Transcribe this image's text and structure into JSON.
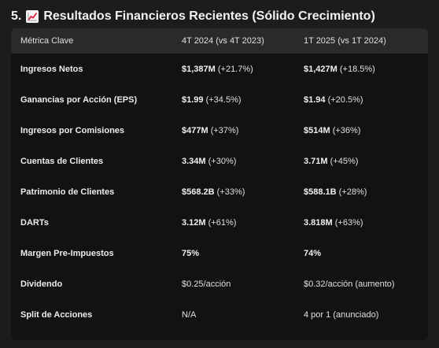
{
  "heading": {
    "number": "5.",
    "icon": "chart-increasing-icon",
    "title": "Resultados Financieros Recientes (Sólido Crecimiento)"
  },
  "table": {
    "headers": [
      "Métrica Clave",
      "4T 2024 (vs 4T 2023)",
      "1T 2025 (vs 1T 2024)"
    ],
    "rows": [
      {
        "metric": "Ingresos Netos",
        "q4_value": "$1,387M",
        "q4_change": "(+21.7%)",
        "q1_value": "$1,427M",
        "q1_change": "(+18.5%)"
      },
      {
        "metric": "Ganancias por Acción (EPS)",
        "q4_value": "$1.99",
        "q4_change": "(+34.5%)",
        "q1_value": "$1.94",
        "q1_change": "(+20.5%)"
      },
      {
        "metric": "Ingresos por Comisiones",
        "q4_value": "$477M",
        "q4_change": "(+37%)",
        "q1_value": "$514M",
        "q1_change": "(+36%)"
      },
      {
        "metric": "Cuentas de Clientes",
        "q4_value": "3.34M",
        "q4_change": "(+30%)",
        "q1_value": "3.71M",
        "q1_change": "(+45%)"
      },
      {
        "metric": "Patrimonio de Clientes",
        "q4_value": "$568.2B",
        "q4_change": "(+33%)",
        "q1_value": "$588.1B",
        "q1_change": "(+28%)"
      },
      {
        "metric": "DARTs",
        "q4_value": "3.12M",
        "q4_change": "(+61%)",
        "q1_value": "3.818M",
        "q1_change": "(+63%)"
      },
      {
        "metric": "Margen Pre-Impuestos",
        "q4_value": "75%",
        "q4_change": "",
        "q1_value": "74%",
        "q1_change": ""
      },
      {
        "metric": "Dividendo",
        "q4_value": "",
        "q4_change": "$0.25/acción",
        "q1_value": "",
        "q1_change": "$0.32/acción (aumento)"
      },
      {
        "metric": "Split de Acciones",
        "q4_value": "",
        "q4_change": "N/A",
        "q1_value": "",
        "q1_change": "4 por 1 (anunciado)"
      }
    ]
  }
}
